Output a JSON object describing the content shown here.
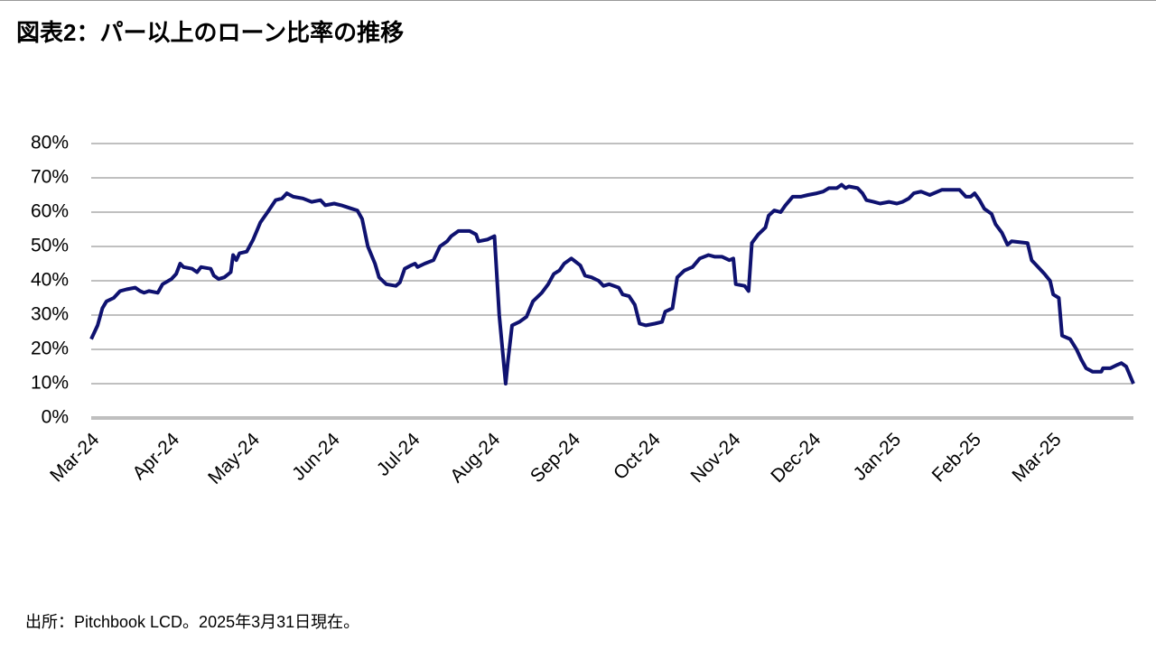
{
  "chart_data": {
    "type": "line",
    "title": "図表2：パー以上のローン比率の推移",
    "source": "出所：Pitchbook LCD。2025年3月31日現在。",
    "color": "#0f1270",
    "grid": true,
    "x": [
      0,
      0.08,
      0.14,
      0.19,
      0.28,
      0.36,
      0.44,
      0.55,
      0.61,
      0.66,
      0.72,
      0.83,
      0.89,
      1.0,
      1.06,
      1.11,
      1.15,
      1.26,
      1.32,
      1.37,
      1.49,
      1.53,
      1.59,
      1.66,
      1.74,
      1.77,
      1.81,
      1.85,
      1.94,
      2.02,
      2.11,
      2.2,
      2.3,
      2.38,
      2.44,
      2.52,
      2.64,
      2.75,
      2.86,
      2.92,
      3.03,
      3.12,
      3.25,
      3.32,
      3.38,
      3.45,
      3.54,
      3.59,
      3.68,
      3.8,
      3.85,
      3.91,
      3.99,
      4.04,
      4.07,
      4.16,
      4.27,
      4.35,
      4.44,
      4.49,
      4.58,
      4.72,
      4.8,
      4.83,
      4.94,
      5.03,
      5.09,
      5.17,
      5.2,
      5.25,
      5.34,
      5.43,
      5.51,
      5.62,
      5.7,
      5.77,
      5.84,
      5.9,
      5.99,
      6.1,
      6.16,
      6.24,
      6.33,
      6.39,
      6.46,
      6.58,
      6.63,
      6.71,
      6.78,
      6.84,
      6.92,
      7.03,
      7.12,
      7.16,
      7.25,
      7.31,
      7.4,
      7.5,
      7.59,
      7.7,
      7.78,
      7.87,
      7.96,
      8.01,
      8.04,
      8.15,
      8.2,
      8.24,
      8.32,
      8.41,
      8.45,
      8.52,
      8.6,
      8.66,
      8.75,
      8.85,
      8.94,
      9.05,
      9.13,
      9.2,
      9.3,
      9.36,
      9.41,
      9.45,
      9.56,
      9.62,
      9.67,
      9.76,
      9.84,
      9.95,
      10.05,
      10.12,
      10.2,
      10.26,
      10.35,
      10.46,
      10.61,
      10.78,
      10.83,
      10.91,
      10.97,
      11.02,
      11.08,
      11.14,
      11.23,
      11.28,
      11.36,
      11.43,
      11.48,
      11.68,
      11.73,
      11.81,
      11.89,
      11.96,
      12.0,
      12.07,
      12.11,
      12.21,
      12.29,
      12.35,
      12.41,
      12.49,
      12.6,
      12.62,
      12.71,
      12.8,
      12.85,
      12.91,
      13.0
    ],
    "values": [
      23,
      27,
      32,
      34,
      35,
      37,
      37.5,
      38,
      37,
      36.5,
      37,
      36.5,
      39,
      40.5,
      42,
      45,
      44,
      43.5,
      42.5,
      44,
      43.5,
      41.5,
      40.5,
      41,
      42.5,
      47.5,
      46,
      48,
      48.5,
      52,
      57,
      60,
      63.5,
      64,
      65.5,
      64.5,
      64,
      63,
      63.5,
      62,
      62.5,
      62,
      61,
      60.5,
      58,
      50,
      45,
      41,
      39,
      38.5,
      39.5,
      43.5,
      44.5,
      45,
      44,
      45,
      46,
      50,
      51.5,
      53,
      54.5,
      54.5,
      53.5,
      51.5,
      52,
      53,
      30,
      10,
      17,
      27,
      28,
      29.5,
      34,
      36.5,
      39,
      42,
      43,
      45,
      46.5,
      44.5,
      41.5,
      41,
      40,
      38.5,
      39,
      38,
      36,
      35.5,
      33,
      27.5,
      27,
      27.5,
      28,
      31,
      32,
      41,
      43,
      44,
      46.5,
      47.5,
      47,
      47,
      46,
      46.5,
      39,
      38.5,
      37,
      51,
      53.5,
      55.5,
      59,
      60.5,
      60,
      62,
      64.5,
      64.5,
      65,
      65.5,
      66,
      67,
      67,
      68,
      67,
      67.5,
      67,
      65.5,
      63.5,
      63,
      62.5,
      63,
      62.5,
      63,
      64,
      65.5,
      66,
      65,
      66.5,
      66.5,
      66.5,
      64.5,
      64.5,
      65.5,
      63.5,
      61,
      59.5,
      56.5,
      54,
      50.5,
      51.5,
      51,
      46,
      44,
      42,
      40,
      36,
      35,
      24,
      23,
      20,
      17,
      14.5,
      13.5,
      13.5,
      14.5,
      14.5,
      15.5,
      16,
      15,
      10
    ],
    "xlim": [
      0,
      13
    ],
    "xticks": [
      {
        "value": 0,
        "label": "Mar-24"
      },
      {
        "value": 1,
        "label": "Apr-24"
      },
      {
        "value": 2,
        "label": "May-24"
      },
      {
        "value": 3,
        "label": "Jun-24"
      },
      {
        "value": 4,
        "label": "Jul-24"
      },
      {
        "value": 5,
        "label": "Aug-24"
      },
      {
        "value": 6,
        "label": "Sep-24"
      },
      {
        "value": 7,
        "label": "Oct-24"
      },
      {
        "value": 8,
        "label": "Nov-24"
      },
      {
        "value": 9,
        "label": "Dec-24"
      },
      {
        "value": 10,
        "label": "Jan-25"
      },
      {
        "value": 11,
        "label": "Feb-25"
      },
      {
        "value": 12,
        "label": "Mar-25"
      }
    ],
    "ylim": [
      0,
      80
    ],
    "yticks": [
      {
        "value": 0,
        "label": "0%"
      },
      {
        "value": 10,
        "label": "10%"
      },
      {
        "value": 20,
        "label": "20%"
      },
      {
        "value": 30,
        "label": "30%"
      },
      {
        "value": 40,
        "label": "40%"
      },
      {
        "value": 50,
        "label": "50%"
      },
      {
        "value": 60,
        "label": "60%"
      },
      {
        "value": 70,
        "label": "70%"
      },
      {
        "value": 80,
        "label": "80%"
      }
    ]
  }
}
